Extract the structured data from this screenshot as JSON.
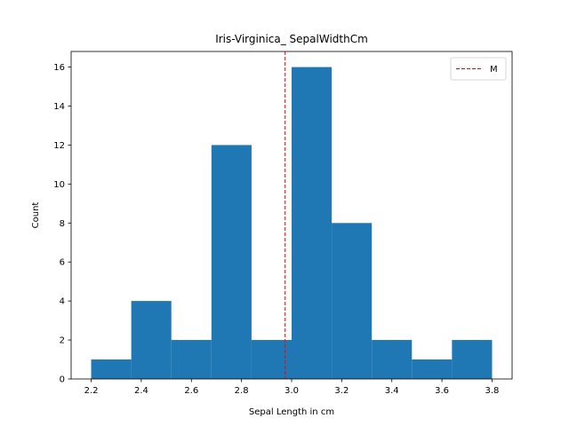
{
  "chart_data": {
    "type": "bar",
    "title": "Iris-Virginica_ SepalWidthCm",
    "xlabel": "Sepal Length in cm",
    "ylabel": "Count",
    "bin_edges": [
      2.2,
      2.36,
      2.52,
      2.68,
      2.84,
      3.0,
      3.16,
      3.32,
      3.48,
      3.64,
      3.8
    ],
    "values": [
      1,
      4,
      2,
      12,
      2,
      16,
      8,
      2,
      1,
      2
    ],
    "xlim": [
      2.12,
      3.88
    ],
    "ylim": [
      0,
      16.8
    ],
    "x_ticks": [
      "2.2",
      "2.4",
      "2.6",
      "2.8",
      "3.0",
      "3.2",
      "3.4",
      "3.6",
      "3.8"
    ],
    "y_ticks": [
      "0",
      "2",
      "4",
      "6",
      "8",
      "10",
      "12",
      "14",
      "16"
    ],
    "mean_line": {
      "x": 2.974,
      "label": "M",
      "color": "#ff0000",
      "style": "dashed"
    },
    "bar_color": "#1f77b4",
    "legend": {
      "placement": "top-right",
      "entries": [
        "M"
      ]
    },
    "grid": false
  }
}
